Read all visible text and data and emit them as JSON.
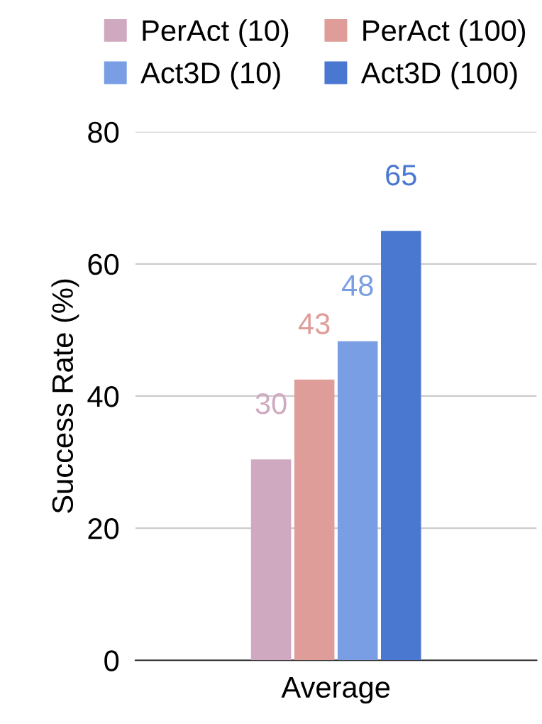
{
  "chart_data": {
    "type": "bar",
    "ylabel": "Success Rate (%)",
    "categories": [
      "Average"
    ],
    "series": [
      {
        "name": "PerAct (10)",
        "color": "#cfa9bf",
        "values": [
          30.4
        ],
        "value_labels": [
          "30"
        ]
      },
      {
        "name": "PerAct (100)",
        "color": "#de9d99",
        "values": [
          42.5
        ],
        "value_labels": [
          "43"
        ]
      },
      {
        "name": "Act3D (10)",
        "color": "#799ee3",
        "values": [
          48.3
        ],
        "value_labels": [
          "48"
        ]
      },
      {
        "name": "Act3D (100)",
        "color": "#4a78d1",
        "values": [
          65
        ],
        "value_labels": [
          "65"
        ]
      }
    ],
    "ylim": [
      0,
      80
    ],
    "yticks": [
      0,
      20,
      40,
      60,
      80
    ],
    "grid": "y",
    "legend": "top"
  }
}
